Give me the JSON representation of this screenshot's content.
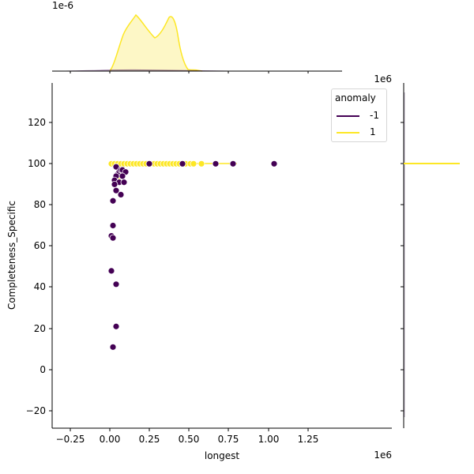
{
  "chart_data": {
    "type": "scatter",
    "kind": "jointplot",
    "xlabel": "longest",
    "ylabel": "Completeness_Specific",
    "x_offset_text": "1e6",
    "top_marginal_offset_text": "1e-6",
    "top_marginal_x_offset_text": "1e6",
    "xlim": [
      -0.365,
      1.485
    ],
    "ylim": [
      -27.5,
      139
    ],
    "x_ticks": [
      -0.25,
      0.0,
      0.25,
      0.5,
      0.75,
      1.0,
      1.25
    ],
    "x_tick_labels": [
      "−0.25",
      "0.00",
      "0.25",
      "0.50",
      "0.75",
      "1.00",
      "1.25"
    ],
    "y_ticks": [
      -20,
      0,
      20,
      40,
      60,
      80,
      100,
      120
    ],
    "y_tick_labels": [
      "−20",
      "0",
      "20",
      "40",
      "60",
      "80",
      "100",
      "120"
    ],
    "grid": false,
    "legend": {
      "title": "anomaly",
      "position": "upper right",
      "entries": [
        {
          "label": "-1",
          "color": "#440154"
        },
        {
          "label": "1",
          "color": "#fde725"
        }
      ]
    },
    "series": [
      {
        "name": "1",
        "color": "#fde725",
        "points": [
          [
            0.01,
            100
          ],
          [
            0.03,
            100
          ],
          [
            0.05,
            100
          ],
          [
            0.07,
            100
          ],
          [
            0.09,
            100
          ],
          [
            0.11,
            100
          ],
          [
            0.13,
            100
          ],
          [
            0.15,
            100
          ],
          [
            0.17,
            100
          ],
          [
            0.19,
            100
          ],
          [
            0.21,
            100
          ],
          [
            0.23,
            100
          ],
          [
            0.26,
            100
          ],
          [
            0.28,
            100
          ],
          [
            0.3,
            100
          ],
          [
            0.32,
            100
          ],
          [
            0.34,
            100
          ],
          [
            0.36,
            100
          ],
          [
            0.38,
            100
          ],
          [
            0.4,
            100
          ],
          [
            0.42,
            100
          ],
          [
            0.44,
            100
          ],
          [
            0.48,
            100
          ],
          [
            0.51,
            100
          ],
          [
            0.53,
            100
          ],
          [
            0.58,
            100
          ],
          [
            0.06,
            94
          ]
        ]
      },
      {
        "name": "-1",
        "color": "#440154",
        "points": [
          [
            0.04,
            98.5
          ],
          [
            0.05,
            95
          ],
          [
            0.06,
            96
          ],
          [
            0.07,
            97
          ],
          [
            0.08,
            97
          ],
          [
            0.1,
            96
          ],
          [
            0.04,
            94
          ],
          [
            0.03,
            92
          ],
          [
            0.08,
            94
          ],
          [
            0.06,
            91
          ],
          [
            0.03,
            90
          ],
          [
            0.09,
            91
          ],
          [
            0.04,
            87
          ],
          [
            0.07,
            85
          ],
          [
            0.02,
            82
          ],
          [
            0.02,
            70
          ],
          [
            0.01,
            65
          ],
          [
            0.02,
            64
          ],
          [
            0.01,
            48
          ],
          [
            0.04,
            41.5
          ],
          [
            0.04,
            21
          ],
          [
            0.02,
            11
          ],
          [
            0.25,
            100
          ],
          [
            0.46,
            100
          ],
          [
            0.67,
            100
          ],
          [
            0.78,
            100
          ],
          [
            1.04,
            100
          ]
        ]
      }
    ],
    "top_marginal": {
      "type": "kde",
      "series": [
        {
          "name": "1",
          "color": "#fde725",
          "fill": "#fdf7c6",
          "description": "bimodal density peaks near x=0.17e6 and x=0.35e6, small bump near 0.5e6"
        },
        {
          "name": "-1",
          "color": "#440154",
          "description": "very low flat density near zero across 0-0.6e6"
        }
      ]
    },
    "right_marginal": {
      "type": "kde",
      "series": [
        {
          "name": "1",
          "color": "#fde725",
          "description": "spike at y=100"
        },
        {
          "name": "-1",
          "color": "#440154",
          "description": "near-zero density"
        }
      ]
    }
  }
}
